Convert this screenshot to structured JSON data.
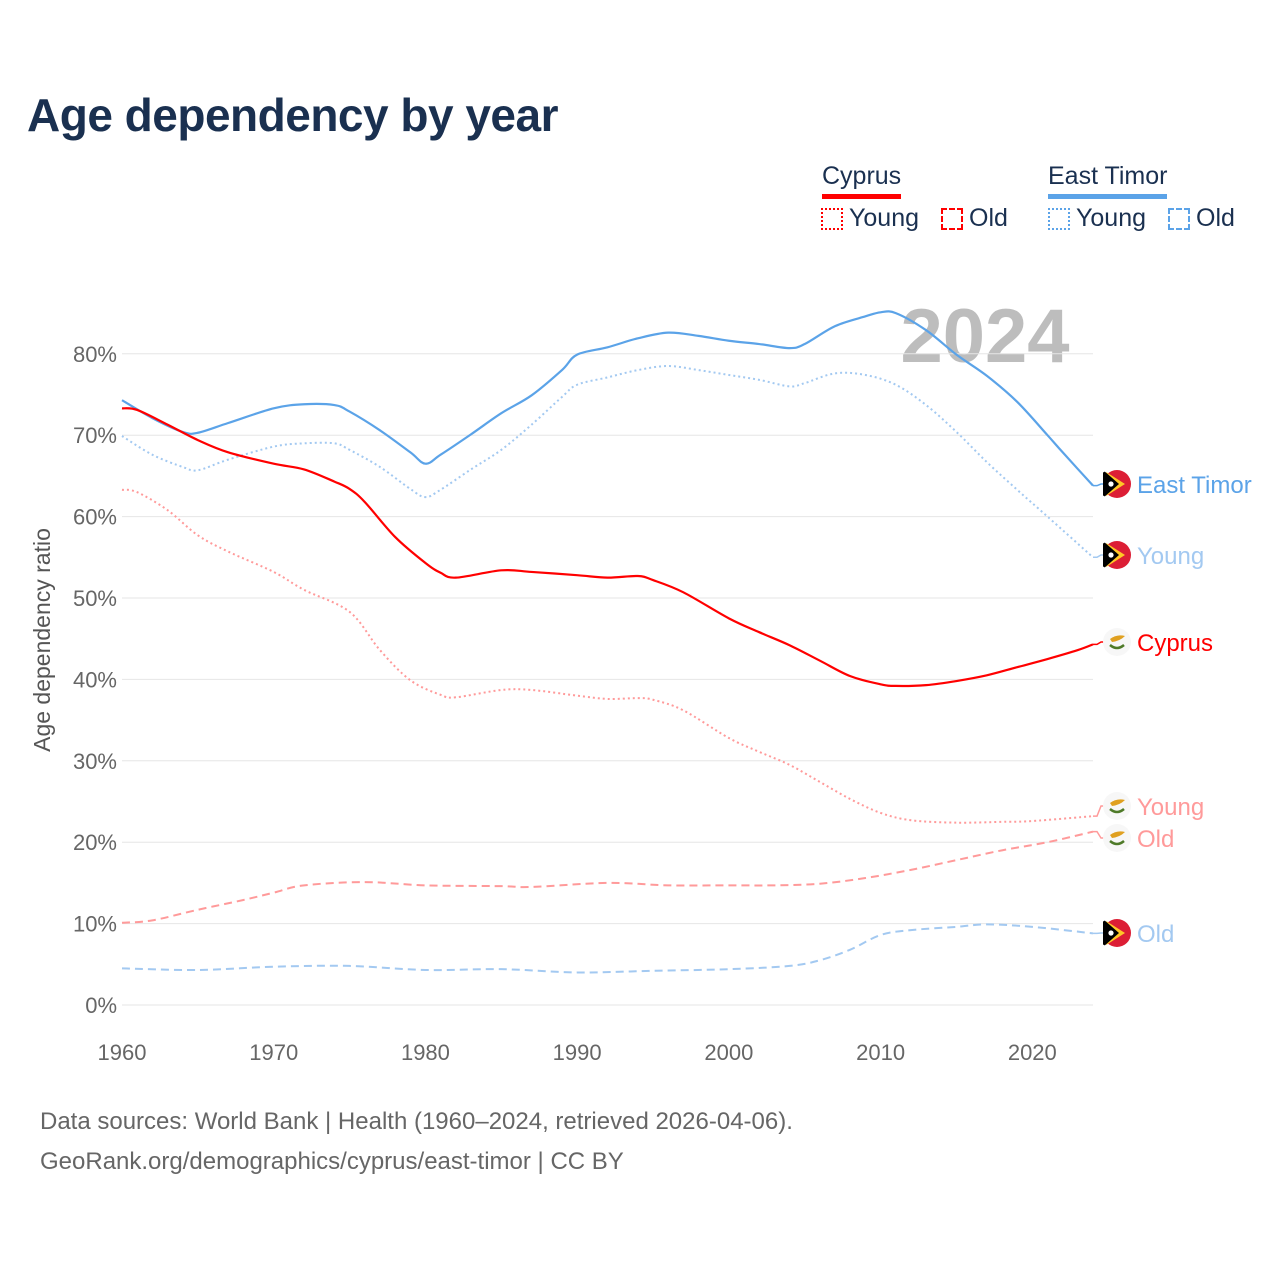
{
  "title": "Age dependency by year",
  "legend": {
    "countries": [
      {
        "name": "Cyprus",
        "color": "#ff0000",
        "light": "#ff9a9a",
        "items": [
          "Young",
          "Old"
        ]
      },
      {
        "name": "East Timor",
        "color": "#5ba3e8",
        "light": "#a3c9f1",
        "items": [
          "Young",
          "Old"
        ]
      }
    ]
  },
  "year_watermark": "2024",
  "footer": {
    "line1": "Data sources: World Bank | Health (1960–2024, retrieved 2026-04-06).",
    "line2": "GeoRank.org/demographics/cyprus/east-timor | CC BY"
  },
  "chart_data": {
    "type": "line",
    "title": "Age dependency by year",
    "xlabel": "",
    "ylabel": "Age dependency ratio",
    "xlim": [
      1960,
      2024
    ],
    "ylim": [
      0,
      85
    ],
    "x_ticks": [
      1960,
      1970,
      1980,
      1990,
      2000,
      2010,
      2020
    ],
    "x_tick_labels": [
      "1960",
      "1970",
      "1980",
      "1990",
      "2000",
      "2010",
      "2020"
    ],
    "y_ticks": [
      0,
      10,
      20,
      30,
      40,
      50,
      60,
      70,
      80
    ],
    "y_tick_labels": [
      "0%",
      "10%",
      "20%",
      "30%",
      "40%",
      "50%",
      "60%",
      "70%",
      "80%"
    ],
    "grid": true,
    "legend_position": "top-right",
    "series": [
      {
        "name": "East Timor",
        "end_label": "East Timor",
        "country": "East Timor",
        "style": "solid",
        "color": "#5ba3e8",
        "x": [
          1960,
          1962,
          1964,
          1965,
          1967,
          1970,
          1972,
          1974,
          1975,
          1977,
          1979,
          1980,
          1981,
          1983,
          1985,
          1987,
          1989,
          1990,
          1992,
          1994,
          1996,
          1998,
          2000,
          2002,
          2004,
          2005,
          2007,
          2009,
          2010,
          2011,
          2013,
          2015,
          2017,
          2019,
          2021,
          2022,
          2024
        ],
        "y": [
          74.3,
          72.1,
          70.4,
          70.3,
          71.5,
          73.3,
          73.8,
          73.7,
          72.9,
          70.6,
          67.9,
          66.5,
          67.6,
          70.1,
          72.7,
          74.9,
          78.0,
          79.9,
          80.8,
          81.9,
          82.6,
          82.2,
          81.6,
          81.2,
          80.7,
          81.2,
          83.4,
          84.6,
          85.1,
          85.0,
          82.9,
          79.9,
          77.3,
          74.1,
          70.0,
          67.9,
          63.8
        ]
      },
      {
        "name": "East Timor Young",
        "end_label": "Young",
        "country": "East Timor",
        "style": "dotted",
        "color": "#a3c9f1",
        "x": [
          1960,
          1962,
          1964,
          1965,
          1967,
          1970,
          1972,
          1974,
          1975,
          1977,
          1979,
          1980,
          1981,
          1983,
          1985,
          1987,
          1989,
          1990,
          1992,
          1994,
          1996,
          1998,
          2000,
          2002,
          2004,
          2005,
          2007,
          2009,
          2011,
          2013,
          2015,
          2017,
          2019,
          2021,
          2024
        ],
        "y": [
          69.9,
          67.6,
          66.1,
          65.7,
          67.0,
          68.6,
          69.0,
          69.0,
          68.2,
          66.1,
          63.4,
          62.4,
          63.3,
          65.8,
          68.2,
          71.3,
          74.7,
          76.2,
          77.1,
          78.0,
          78.5,
          78.0,
          77.4,
          76.8,
          76.0,
          76.4,
          77.6,
          77.4,
          76.2,
          73.7,
          70.4,
          66.7,
          63.3,
          60.0,
          55.0
        ]
      },
      {
        "name": "Cyprus",
        "end_label": "Cyprus",
        "country": "Cyprus",
        "style": "solid",
        "color": "#ff0000",
        "x": [
          1960,
          1961,
          1963,
          1965,
          1967,
          1970,
          1972,
          1974,
          1975,
          1976,
          1978,
          1980,
          1981,
          1982,
          1985,
          1987,
          1990,
          1992,
          1994,
          1995,
          1997,
          2000,
          2002,
          2004,
          2006,
          2008,
          2010,
          2011,
          2013,
          2015,
          2017,
          2019,
          2021,
          2023,
          2024
        ],
        "y": [
          73.3,
          73.1,
          71.3,
          69.4,
          67.9,
          66.5,
          65.8,
          64.3,
          63.4,
          61.8,
          57.5,
          54.3,
          53.1,
          52.5,
          53.4,
          53.2,
          52.8,
          52.5,
          52.7,
          52.2,
          50.7,
          47.5,
          45.8,
          44.2,
          42.3,
          40.4,
          39.4,
          39.2,
          39.3,
          39.8,
          40.5,
          41.5,
          42.5,
          43.6,
          44.3
        ]
      },
      {
        "name": "Cyprus Young",
        "end_label": "Young",
        "country": "Cyprus",
        "style": "dotted",
        "color": "#ff9a9a",
        "x": [
          1960,
          1961,
          1963,
          1965,
          1967,
          1970,
          1972,
          1975,
          1977,
          1979,
          1981,
          1982,
          1985,
          1987,
          1990,
          1992,
          1994,
          1995,
          1997,
          2000,
          2002,
          2004,
          2006,
          2008,
          2010,
          2012,
          2015,
          2018,
          2020,
          2024
        ],
        "y": [
          63.3,
          63.0,
          60.8,
          57.7,
          55.7,
          53.2,
          51.0,
          48.3,
          43.6,
          39.9,
          38.1,
          37.8,
          38.7,
          38.7,
          38.0,
          37.6,
          37.7,
          37.5,
          36.2,
          32.8,
          31.1,
          29.5,
          27.4,
          25.3,
          23.6,
          22.7,
          22.4,
          22.5,
          22.6,
          23.2
        ]
      },
      {
        "name": "Cyprus Old",
        "end_label": "Old",
        "country": "Cyprus",
        "style": "dashed",
        "color": "#ff9a9a",
        "x": [
          1960,
          1962,
          1965,
          1968,
          1970,
          1972,
          1976,
          1980,
          1985,
          1987,
          1992,
          1996,
          2000,
          2003,
          2006,
          2009,
          2012,
          2015,
          2018,
          2021,
          2024
        ],
        "y": [
          10.1,
          10.4,
          11.7,
          12.9,
          13.8,
          14.7,
          15.1,
          14.7,
          14.6,
          14.5,
          15.0,
          14.7,
          14.7,
          14.7,
          14.9,
          15.6,
          16.6,
          17.8,
          19.0,
          20.0,
          21.3
        ]
      },
      {
        "name": "East Timor Old",
        "end_label": "Old",
        "country": "East Timor",
        "style": "dashed",
        "color": "#a3c9f1",
        "x": [
          1960,
          1965,
          1970,
          1975,
          1980,
          1985,
          1990,
          1995,
          2000,
          2004,
          2006,
          2008,
          2010,
          2012,
          2015,
          2017,
          2020,
          2024
        ],
        "y": [
          4.5,
          4.3,
          4.7,
          4.8,
          4.3,
          4.4,
          4.0,
          4.2,
          4.4,
          4.8,
          5.5,
          6.8,
          8.6,
          9.2,
          9.6,
          9.9,
          9.6,
          8.8
        ]
      }
    ]
  }
}
